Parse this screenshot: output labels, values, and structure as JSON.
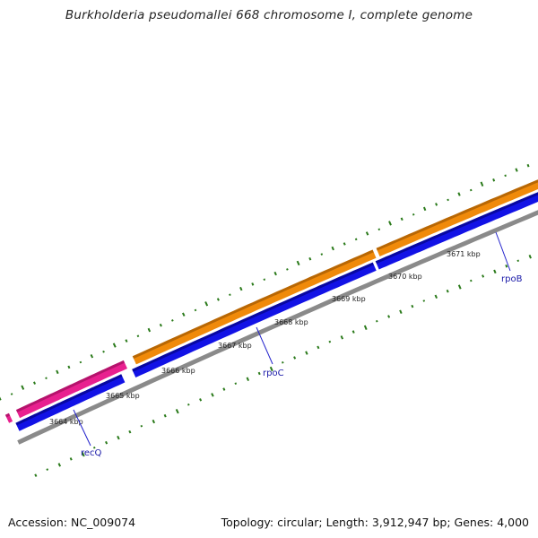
{
  "title": "Burkholderia pseudomallei 668 chromosome I, complete genome",
  "footer": {
    "accession": "Accession: NC_009074",
    "summary": "Topology: circular; Length: 3,912,947 bp; Genes: 4,000"
  },
  "colors": {
    "backbone": "#8a8a8a",
    "forward_cds": "#1212e6",
    "reverse_orange": "#f08a0a",
    "reverse_pink": "#e8208f",
    "gc_ticks": "#2a7a1a",
    "label_line": "#2222cc"
  },
  "kbp_labels": [
    "3664 kbp",
    "3665 kbp",
    "3666 kbp",
    "3667 kbp",
    "3668 kbp",
    "3669 kbp",
    "3670 kbp",
    "3671 kbp"
  ],
  "genes": [
    {
      "name": "recQ"
    },
    {
      "name": "rpoC"
    },
    {
      "name": "rpoB"
    }
  ]
}
